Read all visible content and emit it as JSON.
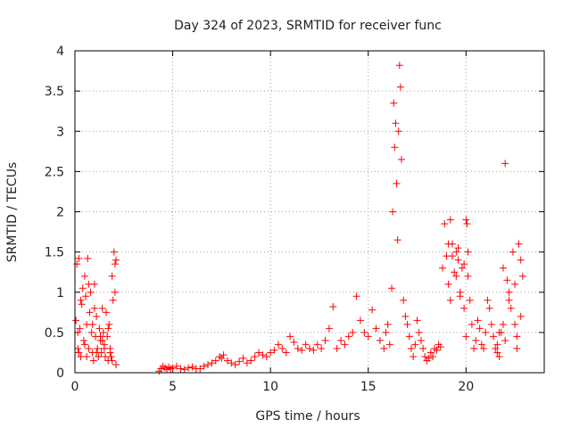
{
  "colors": {
    "marker": "#ff0000",
    "grid": "#a0a0a0",
    "frame": "#000000"
  },
  "chart_data": {
    "type": "scatter",
    "title": "Day 324 of 2023, SRMTID for receiver func",
    "xlabel": "GPS time / hours",
    "ylabel": "SRMTID / TECUs",
    "xlim": [
      0,
      24
    ],
    "ylim": [
      0,
      4
    ],
    "xticks": [
      0,
      5,
      10,
      15,
      20
    ],
    "yticks": [
      0,
      0.5,
      1,
      1.5,
      2,
      2.5,
      3,
      3.5,
      4
    ],
    "grid": true,
    "legend": "none",
    "series": [
      {
        "name": "SRMTID",
        "marker": "plus",
        "x": [
          0.05,
          0.1,
          0.15,
          0.2,
          0.25,
          0.3,
          0.35,
          0.4,
          0.45,
          0.5,
          0.55,
          0.6,
          0.65,
          0.7,
          0.75,
          0.8,
          0.85,
          0.9,
          0.95,
          1.0,
          1.05,
          1.1,
          1.15,
          1.2,
          1.25,
          1.3,
          1.35,
          1.4,
          1.45,
          1.5,
          1.55,
          1.6,
          1.65,
          1.7,
          1.75,
          1.8,
          1.85,
          1.9,
          1.95,
          2.0,
          2.05,
          2.1,
          0.2,
          0.3,
          0.5,
          0.7,
          0.9,
          1.1,
          1.3,
          1.5,
          1.7,
          1.9,
          2.05,
          0.15,
          0.6,
          1.0,
          1.4,
          1.8,
          2.1,
          4.3,
          4.4,
          4.5,
          4.6,
          4.7,
          4.8,
          4.9,
          5.0,
          5.2,
          5.4,
          5.6,
          5.8,
          6.0,
          6.2,
          6.4,
          6.6,
          6.8,
          7.0,
          7.2,
          7.4,
          7.5,
          7.6,
          7.8,
          8.0,
          8.2,
          8.4,
          8.6,
          8.8,
          9.0,
          9.2,
          9.4,
          9.6,
          9.8,
          10.0,
          10.2,
          10.4,
          10.6,
          10.8,
          11.0,
          11.2,
          11.4,
          11.6,
          11.8,
          12.0,
          12.2,
          12.4,
          12.6,
          12.8,
          13.0,
          13.2,
          13.4,
          13.6,
          13.8,
          14.0,
          14.2,
          14.4,
          14.6,
          14.8,
          15.0,
          15.2,
          15.4,
          15.6,
          15.8,
          15.9,
          16.0,
          16.1,
          16.2,
          16.25,
          16.3,
          16.35,
          16.4,
          16.45,
          16.5,
          16.55,
          16.6,
          16.65,
          16.7,
          16.8,
          16.9,
          17.0,
          17.1,
          17.2,
          17.3,
          17.4,
          17.5,
          17.6,
          17.7,
          17.8,
          17.9,
          18.0,
          18.1,
          18.2,
          18.3,
          18.4,
          18.5,
          18.6,
          18.7,
          18.8,
          18.9,
          19.0,
          19.1,
          19.2,
          19.3,
          19.4,
          19.5,
          19.6,
          19.7,
          19.8,
          19.9,
          20.0,
          20.05,
          20.1,
          20.2,
          20.3,
          20.4,
          20.5,
          20.6,
          20.7,
          20.8,
          20.9,
          21.0,
          21.1,
          21.2,
          21.3,
          21.4,
          21.5,
          21.6,
          21.7,
          21.8,
          21.9,
          22.0,
          22.1,
          22.2,
          22.3,
          22.4,
          22.5,
          22.6,
          22.7,
          22.8,
          22.9,
          19.1,
          19.3,
          19.5,
          19.7,
          19.9,
          20.1,
          21.6,
          21.9,
          22.2,
          22.5,
          22.8,
          19.2,
          19.6,
          20.0,
          21.7,
          22.0,
          22.6
        ],
        "y": [
          0.65,
          1.35,
          0.3,
          1.42,
          0.55,
          0.2,
          0.85,
          1.05,
          0.4,
          1.2,
          0.95,
          0.6,
          1.42,
          0.3,
          0.75,
          1.0,
          0.5,
          0.25,
          0.15,
          1.1,
          0.45,
          0.7,
          0.3,
          0.2,
          0.55,
          0.4,
          0.25,
          0.8,
          0.5,
          0.35,
          0.2,
          0.75,
          0.45,
          0.15,
          0.6,
          0.3,
          0.2,
          1.2,
          0.9,
          1.5,
          1.0,
          0.1,
          0.25,
          0.9,
          0.35,
          1.1,
          0.6,
          0.25,
          0.45,
          0.3,
          0.55,
          0.15,
          1.35,
          0.5,
          0.2,
          0.8,
          0.4,
          0.25,
          1.4,
          0.02,
          0.05,
          0.08,
          0.06,
          0.04,
          0.07,
          0.05,
          0.06,
          0.08,
          0.05,
          0.04,
          0.06,
          0.07,
          0.05,
          0.05,
          0.08,
          0.1,
          0.12,
          0.15,
          0.2,
          0.18,
          0.22,
          0.15,
          0.12,
          0.1,
          0.14,
          0.18,
          0.12,
          0.15,
          0.2,
          0.25,
          0.22,
          0.2,
          0.25,
          0.28,
          0.35,
          0.3,
          0.25,
          0.45,
          0.38,
          0.3,
          0.28,
          0.35,
          0.3,
          0.28,
          0.35,
          0.3,
          0.4,
          0.55,
          0.82,
          0.3,
          0.4,
          0.35,
          0.45,
          0.5,
          0.95,
          0.65,
          0.5,
          0.45,
          0.78,
          0.55,
          0.4,
          0.3,
          0.5,
          0.6,
          0.35,
          1.05,
          2.0,
          3.35,
          2.8,
          3.1,
          2.35,
          1.65,
          3.0,
          3.82,
          3.55,
          2.65,
          0.9,
          0.7,
          0.6,
          0.45,
          0.3,
          0.2,
          0.35,
          0.65,
          0.5,
          0.4,
          0.3,
          0.2,
          0.15,
          0.18,
          0.25,
          0.2,
          0.3,
          0.28,
          0.35,
          0.32,
          1.3,
          1.85,
          1.45,
          1.1,
          1.9,
          1.6,
          1.25,
          1.5,
          1.4,
          1.0,
          1.3,
          0.8,
          1.9,
          1.85,
          1.2,
          0.9,
          0.6,
          0.3,
          0.4,
          0.65,
          0.55,
          0.35,
          0.3,
          0.5,
          0.9,
          0.8,
          0.6,
          0.45,
          0.3,
          0.25,
          0.2,
          0.5,
          1.3,
          2.6,
          1.15,
          1.0,
          0.8,
          1.5,
          0.6,
          0.3,
          1.6,
          1.4,
          1.2,
          1.6,
          1.45,
          1.2,
          0.95,
          1.35,
          1.5,
          0.35,
          0.6,
          0.9,
          1.1,
          0.7,
          0.9,
          1.55,
          0.45,
          0.5,
          0.4,
          0.45
        ]
      }
    ]
  }
}
